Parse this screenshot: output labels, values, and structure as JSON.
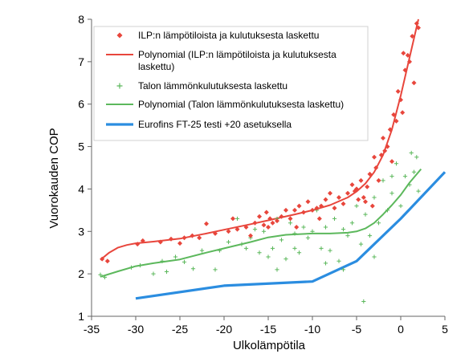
{
  "chart_data": {
    "type": "scatter",
    "xlabel": "Ulkolämpötila",
    "ylabel": "Vuorokauden COP",
    "xlim": [
      -35,
      5
    ],
    "ylim": [
      1,
      8
    ],
    "xticks": [
      -35,
      -30,
      -25,
      -20,
      -15,
      -10,
      -5,
      0,
      5
    ],
    "yticks": [
      1,
      2,
      3,
      4,
      5,
      6,
      7,
      8
    ],
    "grid": false,
    "legend_position": "top-left",
    "series": [
      {
        "name": "ILP:n lämpötiloista ja kulutuksesta laskettu",
        "kind": "scatter",
        "marker": "diamond",
        "color": "#e8463c",
        "points": [
          [
            -33.8,
            2.35
          ],
          [
            -33.2,
            2.3
          ],
          [
            -29.8,
            2.7
          ],
          [
            -29.2,
            2.78
          ],
          [
            -27.2,
            2.75
          ],
          [
            -26.0,
            2.82
          ],
          [
            -25.0,
            2.72
          ],
          [
            -24.5,
            2.85
          ],
          [
            -23.6,
            2.9
          ],
          [
            -22.8,
            2.85
          ],
          [
            -22.0,
            3.18
          ],
          [
            -21.0,
            2.95
          ],
          [
            -19.5,
            3.0
          ],
          [
            -19.0,
            3.3
          ],
          [
            -18.5,
            3.05
          ],
          [
            -17.5,
            3.1
          ],
          [
            -17.0,
            2.9
          ],
          [
            -16.5,
            3.2
          ],
          [
            -16.0,
            3.35
          ],
          [
            -15.5,
            3.15
          ],
          [
            -15.2,
            3.45
          ],
          [
            -15.0,
            3.1
          ],
          [
            -14.8,
            3.3
          ],
          [
            -14.5,
            3.2
          ],
          [
            -14.0,
            3.25
          ],
          [
            -13.5,
            3.35
          ],
          [
            -13.0,
            3.5
          ],
          [
            -12.5,
            3.3
          ],
          [
            -12.0,
            3.5
          ],
          [
            -11.8,
            3.1
          ],
          [
            -11.5,
            3.6
          ],
          [
            -11.0,
            3.45
          ],
          [
            -10.5,
            3.7
          ],
          [
            -10.0,
            3.5
          ],
          [
            -9.5,
            3.55
          ],
          [
            -9.2,
            3.3
          ],
          [
            -9.0,
            3.6
          ],
          [
            -8.5,
            3.75
          ],
          [
            -8.0,
            3.9
          ],
          [
            -7.5,
            3.55
          ],
          [
            -7.0,
            3.8
          ],
          [
            -6.5,
            3.65
          ],
          [
            -6.0,
            3.9
          ],
          [
            -5.5,
            4.1
          ],
          [
            -5.2,
            3.95
          ],
          [
            -5.0,
            4.0
          ],
          [
            -4.8,
            3.75
          ],
          [
            -4.5,
            4.2
          ],
          [
            -4.2,
            3.8
          ],
          [
            -4.0,
            3.7
          ],
          [
            -3.8,
            4.05
          ],
          [
            -3.5,
            4.35
          ],
          [
            -3.2,
            3.6
          ],
          [
            -3.0,
            4.75
          ],
          [
            -2.8,
            4.5
          ],
          [
            -2.5,
            4.2
          ],
          [
            -2.2,
            4.8
          ],
          [
            -2.0,
            5.2
          ],
          [
            -1.8,
            4.9
          ],
          [
            -1.5,
            5.0
          ],
          [
            -1.2,
            5.4
          ],
          [
            -1.0,
            4.65
          ],
          [
            -0.8,
            5.75
          ],
          [
            -0.5,
            5.6
          ],
          [
            -0.3,
            6.3
          ],
          [
            0.0,
            6.1
          ],
          [
            0.2,
            5.8
          ],
          [
            0.5,
            6.8
          ],
          [
            0.8,
            7.15
          ],
          [
            1.0,
            7.0
          ],
          [
            1.3,
            7.6
          ],
          [
            1.5,
            6.5
          ],
          [
            1.8,
            7.9
          ],
          [
            2.0,
            7.8
          ],
          [
            0.3,
            7.2
          ]
        ]
      },
      {
        "name": "Polynomial (ILP:n lämpötiloista ja kulutuksesta laskettu)",
        "kind": "line",
        "color": "#e8463c",
        "points": [
          [
            -34,
            2.33
          ],
          [
            -33,
            2.5
          ],
          [
            -32,
            2.62
          ],
          [
            -31,
            2.68
          ],
          [
            -30,
            2.72
          ],
          [
            -28,
            2.76
          ],
          [
            -25,
            2.83
          ],
          [
            -22,
            2.95
          ],
          [
            -20,
            3.04
          ],
          [
            -17,
            3.17
          ],
          [
            -15,
            3.26
          ],
          [
            -12,
            3.4
          ],
          [
            -10,
            3.5
          ],
          [
            -8,
            3.62
          ],
          [
            -6,
            3.8
          ],
          [
            -5,
            3.94
          ],
          [
            -4,
            4.13
          ],
          [
            -3,
            4.4
          ],
          [
            -2,
            4.8
          ],
          [
            -1,
            5.4
          ],
          [
            0,
            6.2
          ],
          [
            1,
            7.1
          ],
          [
            2,
            8.0
          ]
        ]
      },
      {
        "name": "Talon lämmönkulutuksesta laskettu",
        "kind": "scatter",
        "marker": "plus",
        "color": "#5cb85c",
        "points": [
          [
            -34.0,
            1.98
          ],
          [
            -33.5,
            1.92
          ],
          [
            -30.5,
            2.15
          ],
          [
            -29.5,
            2.2
          ],
          [
            -28.0,
            2.0
          ],
          [
            -27.0,
            2.3
          ],
          [
            -26.5,
            2.05
          ],
          [
            -25.5,
            2.4
          ],
          [
            -24.5,
            2.28
          ],
          [
            -23.5,
            2.12
          ],
          [
            -22.5,
            2.55
          ],
          [
            -21.0,
            2.1
          ],
          [
            -20.5,
            2.55
          ],
          [
            -19.5,
            2.75
          ],
          [
            -18.5,
            3.3
          ],
          [
            -18.0,
            2.7
          ],
          [
            -17.5,
            2.6
          ],
          [
            -17.0,
            2.85
          ],
          [
            -16.5,
            3.05
          ],
          [
            -16.0,
            2.5
          ],
          [
            -15.5,
            3.0
          ],
          [
            -15.0,
            2.4
          ],
          [
            -14.5,
            2.6
          ],
          [
            -14.0,
            3.3
          ],
          [
            -13.5,
            2.8
          ],
          [
            -13.0,
            2.35
          ],
          [
            -12.5,
            3.2
          ],
          [
            -12.0,
            2.95
          ],
          [
            -11.5,
            2.5
          ],
          [
            -11.0,
            3.1
          ],
          [
            -10.5,
            2.85
          ],
          [
            -10.0,
            3.0
          ],
          [
            -9.5,
            3.5
          ],
          [
            -9.0,
            2.6
          ],
          [
            -8.5,
            3.1
          ],
          [
            -8.0,
            2.55
          ],
          [
            -7.5,
            3.3
          ],
          [
            -7.0,
            2.3
          ],
          [
            -6.5,
            3.05
          ],
          [
            -6.0,
            2.9
          ],
          [
            -5.5,
            3.2
          ],
          [
            -5.0,
            3.6
          ],
          [
            -4.5,
            2.7
          ],
          [
            -4.2,
            1.35
          ],
          [
            -4.0,
            3.4
          ],
          [
            -3.5,
            2.9
          ],
          [
            -3.0,
            3.8
          ],
          [
            -2.5,
            3.2
          ],
          [
            -2.0,
            4.2
          ],
          [
            -1.5,
            3.5
          ],
          [
            -1.0,
            3.9
          ],
          [
            -0.5,
            4.6
          ],
          [
            0.0,
            3.6
          ],
          [
            0.5,
            4.3
          ],
          [
            1.0,
            4.1
          ],
          [
            1.2,
            4.85
          ],
          [
            1.5,
            4.4
          ],
          [
            1.8,
            4.75
          ],
          [
            2.0,
            3.95
          ],
          [
            -6.5,
            2.1
          ],
          [
            -14.0,
            2.1
          ],
          [
            -12.0,
            2.6
          ],
          [
            -8.5,
            2.25
          ],
          [
            -3.0,
            2.4
          ],
          [
            -1.0,
            4.3
          ]
        ]
      },
      {
        "name": "Polynomial (Talon lämmönkulutuksesta laskettu)",
        "kind": "line",
        "color": "#5cb85c",
        "points": [
          [
            -34,
            1.93
          ],
          [
            -32,
            2.06
          ],
          [
            -30,
            2.18
          ],
          [
            -28,
            2.25
          ],
          [
            -25,
            2.34
          ],
          [
            -22,
            2.5
          ],
          [
            -20,
            2.6
          ],
          [
            -17,
            2.75
          ],
          [
            -15,
            2.86
          ],
          [
            -13,
            2.92
          ],
          [
            -10,
            2.95
          ],
          [
            -8,
            2.95
          ],
          [
            -6,
            2.97
          ],
          [
            -5,
            3.0
          ],
          [
            -4,
            3.07
          ],
          [
            -3,
            3.2
          ],
          [
            -2,
            3.4
          ],
          [
            -1,
            3.62
          ],
          [
            0,
            3.86
          ],
          [
            1,
            4.15
          ],
          [
            2.3,
            4.47
          ]
        ]
      },
      {
        "name": "Eurofins FT-25 testi +20 asetuksella",
        "kind": "line",
        "color": "#2b8de0",
        "points": [
          [
            -30,
            1.42
          ],
          [
            -20,
            1.72
          ],
          [
            -10,
            1.82
          ],
          [
            -5,
            2.3
          ],
          [
            0,
            3.3
          ],
          [
            5,
            4.4
          ]
        ]
      }
    ]
  }
}
